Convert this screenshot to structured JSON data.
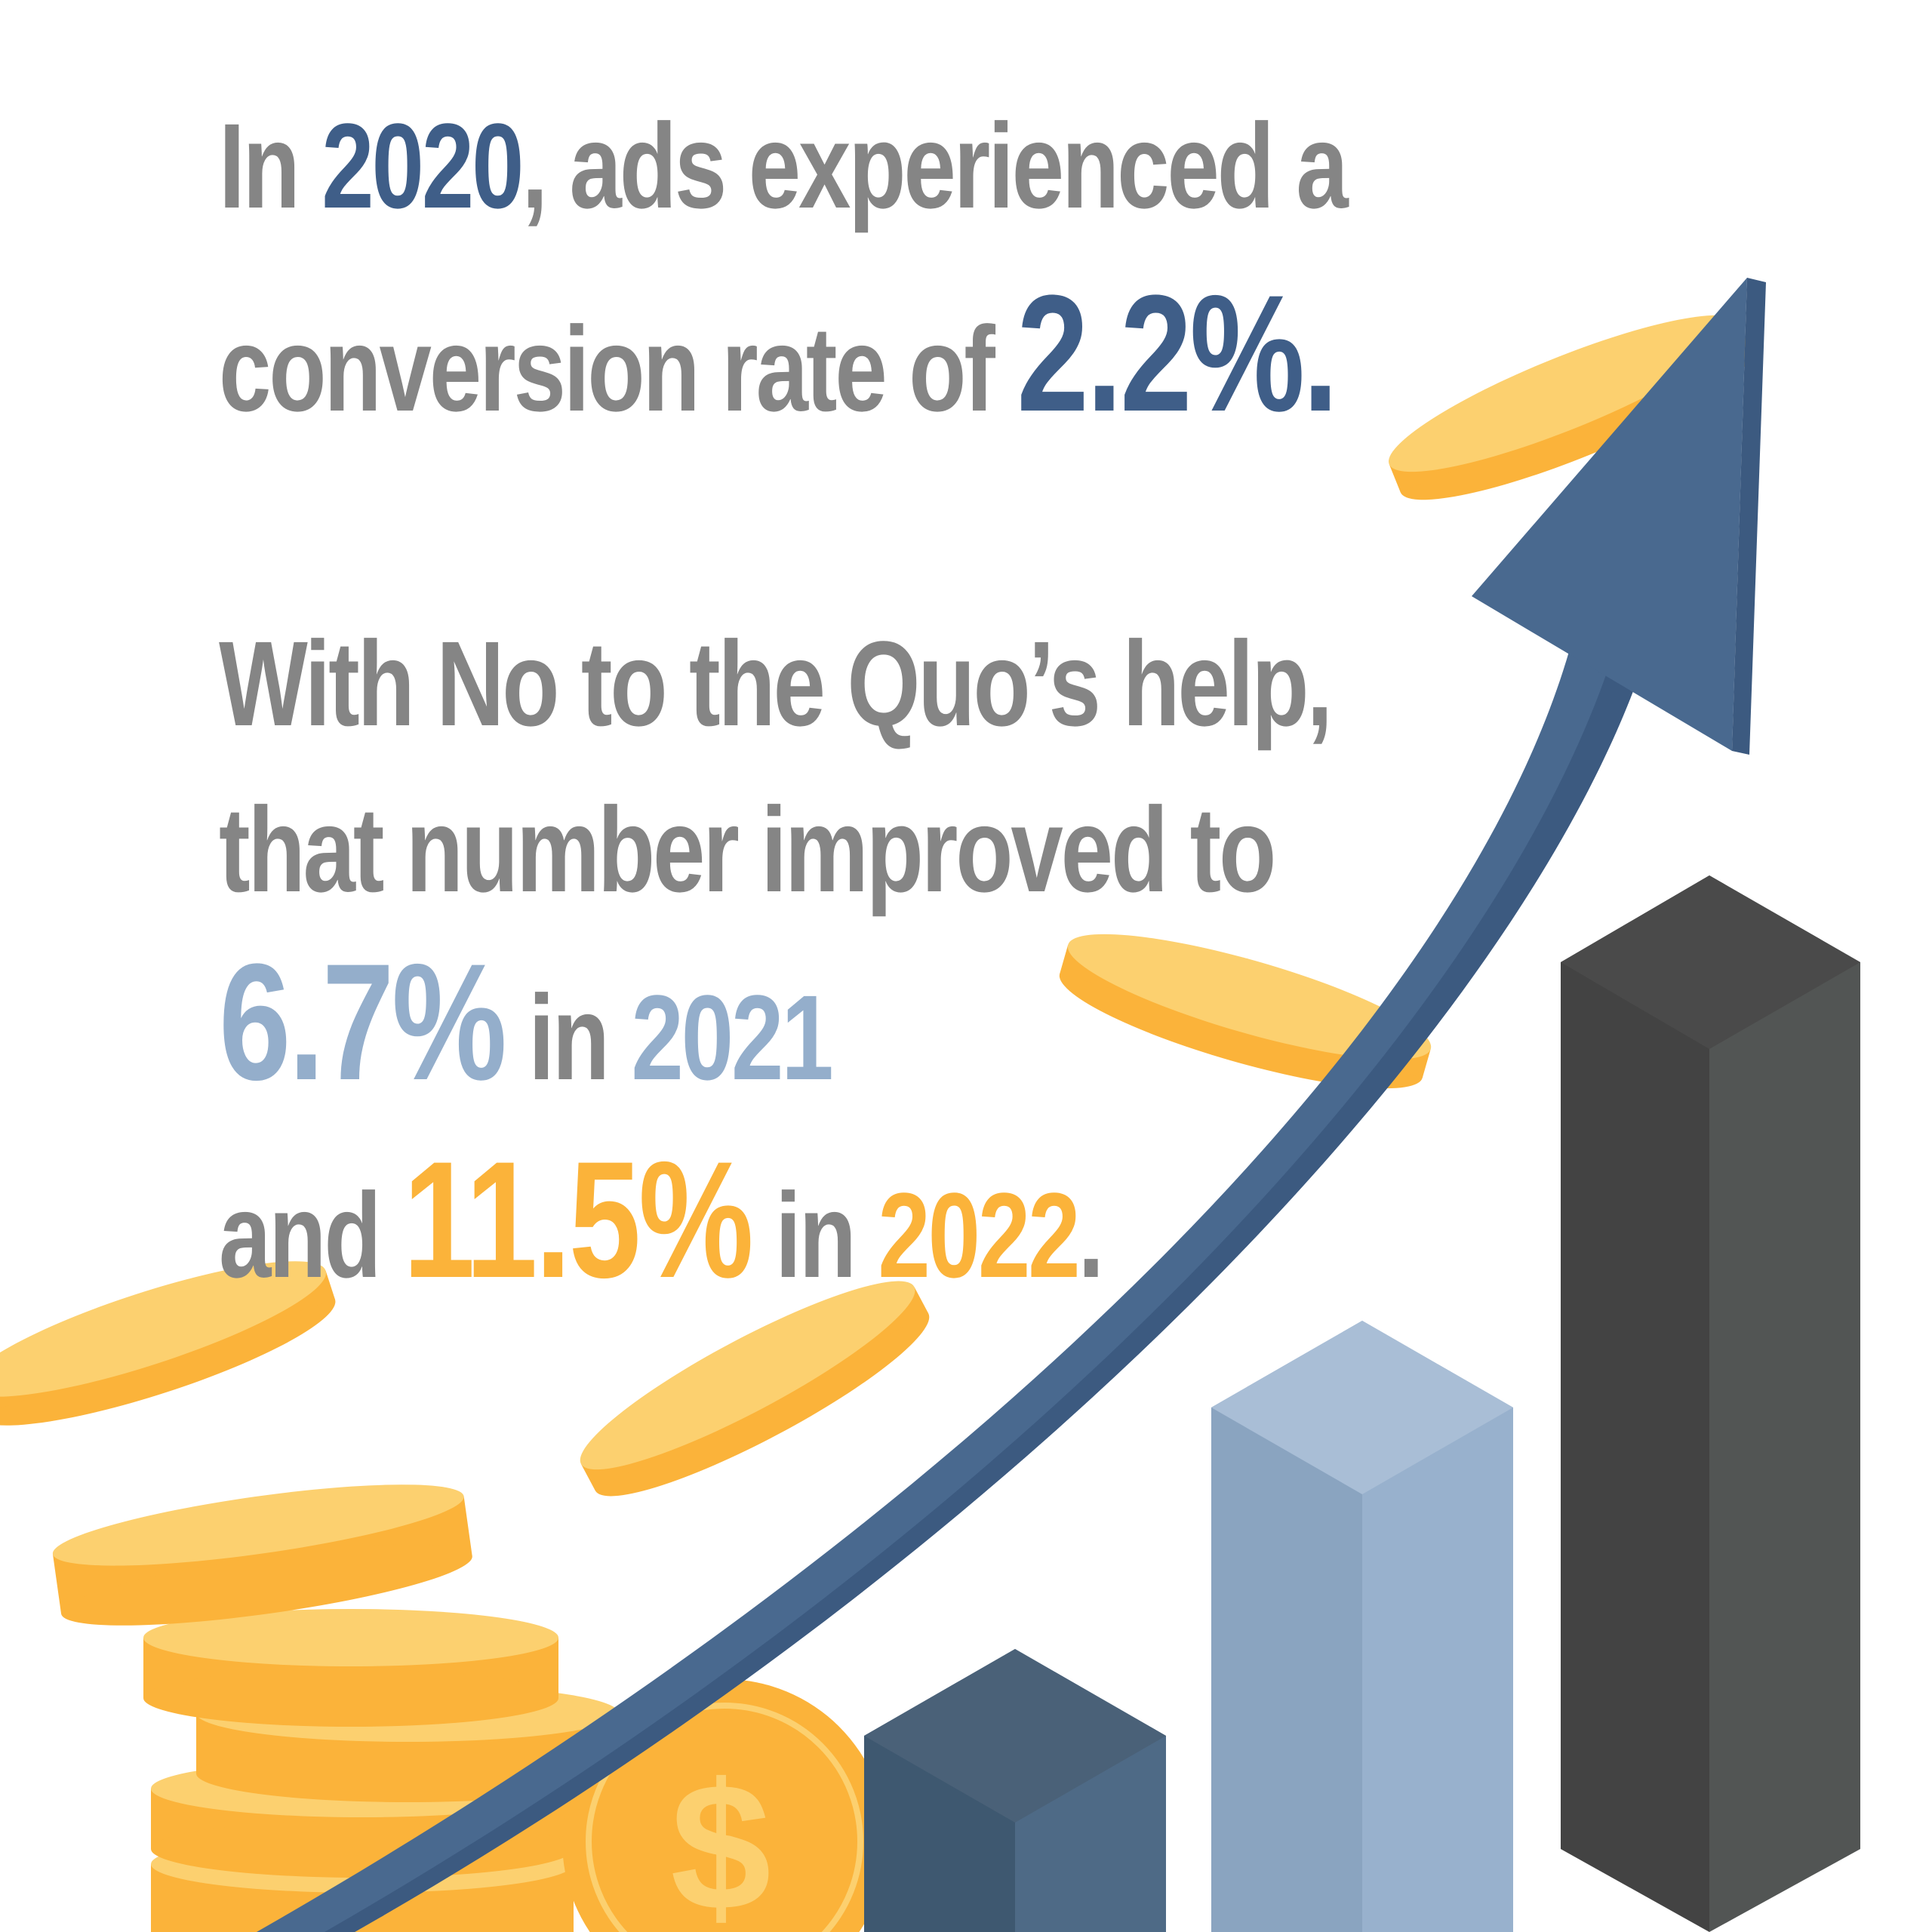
{
  "headline": {
    "line1": {
      "pre": "In ",
      "year": "2020",
      "post": ", ads experienced a"
    },
    "line2": {
      "pre": "conversion rate of ",
      "rate": "2.2%",
      "post": "."
    },
    "line3": "With No to the Quo’s help,",
    "line4": "that number improved to",
    "line5": {
      "rate": "6.7%",
      "mid": " in ",
      "year": "2021"
    },
    "line6": {
      "pre": "and ",
      "rate": "11.5%",
      "mid": " in ",
      "year": "2022",
      "post": "."
    }
  },
  "colors": {
    "text_gray": "#858585",
    "navy": "#3f5e88",
    "light_blue": "#94aecb",
    "orange": "#fbb33a",
    "coin_light": "#fcd06f",
    "dark_bar": "#444444"
  },
  "illustration": {
    "icons": [
      "coin-icon",
      "dollar-coin-icon",
      "growth-arrow-icon",
      "bar-chart-icon"
    ],
    "dollar_symbol": "$"
  }
}
